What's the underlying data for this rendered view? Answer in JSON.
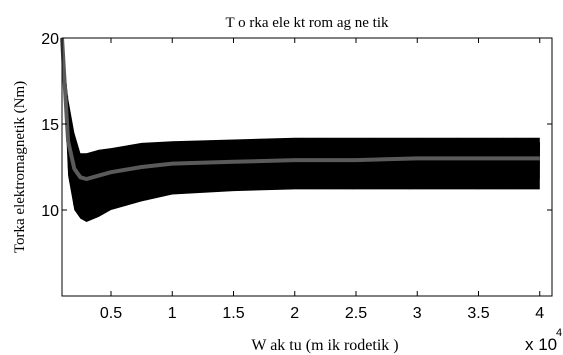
{
  "chart_data": {
    "type": "line",
    "title": "T o rka  ele kt rom ag ne tik",
    "xlabel": "W ak tu  (m ik rodetik )",
    "ylabel": "Torka elektromagnetik (Nm)",
    "x_multiplier_label": "x 10",
    "x_multiplier_exponent": "4",
    "xlim": [
      0.1,
      4.1
    ],
    "ylim": [
      5,
      20
    ],
    "xticks": [
      0.5,
      1,
      1.5,
      2,
      2.5,
      3,
      3.5,
      4
    ],
    "xtick_labels": [
      "0.5",
      "1",
      "1.5",
      "2",
      "2.5",
      "3",
      "3.5",
      "4"
    ],
    "yticks": [
      10,
      15,
      20
    ],
    "ytick_labels": [
      "10",
      "15",
      "20"
    ],
    "grid": false,
    "series": [
      {
        "role": "ripple envelope",
        "color": "#000000",
        "x": [
          0.1,
          0.15,
          0.2,
          0.25,
          0.3,
          0.4,
          0.5,
          0.75,
          1.0,
          1.5,
          2.0,
          2.5,
          3.0,
          3.5,
          4.0
        ],
        "upper": [
          20,
          16.5,
          14.5,
          13.3,
          13.3,
          13.5,
          13.6,
          13.9,
          14.0,
          14.1,
          14.2,
          14.2,
          14.2,
          14.2,
          14.2
        ],
        "lower": [
          20,
          12.0,
          10.0,
          9.5,
          9.3,
          9.6,
          10.0,
          10.5,
          10.9,
          11.1,
          11.2,
          11.2,
          11.2,
          11.2,
          11.2
        ]
      },
      {
        "role": "mean torque",
        "color": "#5a5a5a",
        "x": [
          0.1,
          0.15,
          0.2,
          0.25,
          0.3,
          0.4,
          0.5,
          0.75,
          1.0,
          1.5,
          2.0,
          2.5,
          3.0,
          3.5,
          4.0
        ],
        "y": [
          20,
          14.0,
          12.4,
          11.9,
          11.8,
          12.0,
          12.2,
          12.5,
          12.7,
          12.8,
          12.9,
          12.9,
          13.0,
          13.0,
          13.0
        ]
      }
    ]
  }
}
